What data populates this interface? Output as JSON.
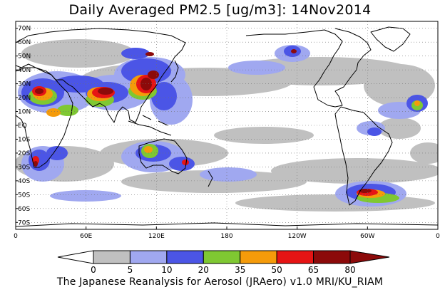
{
  "title": "Daily Averaged PM2.5 [ug/m3]: 14Nov2014",
  "footer": "The Japanese Reanalysis for Aerosol (JRAero) v1.0 MRI/KU_RIAM",
  "map": {
    "projection": "equirectangular",
    "lon_range": [
      0,
      360
    ],
    "lat_range": [
      -75,
      75
    ],
    "grid": "dotted"
  },
  "lat_ticks": [
    "70N",
    "60N",
    "50N",
    "40N",
    "30N",
    "20N",
    "10N",
    "EQ",
    "10S",
    "20S",
    "30S",
    "40S",
    "50S",
    "60S",
    "70S"
  ],
  "lon_ticks": [
    "0",
    "60E",
    "120E",
    "180",
    "120W",
    "60W",
    "0"
  ],
  "colorbar": {
    "labels": [
      "0",
      "5",
      "10",
      "20",
      "35",
      "50",
      "65",
      "80"
    ],
    "colors": [
      "#ffffff",
      "#c0c0c0",
      "#a0a8f0",
      "#4b55e6",
      "#7fc832",
      "#f59b0a",
      "#e61414",
      "#8c0a0a"
    ]
  }
}
